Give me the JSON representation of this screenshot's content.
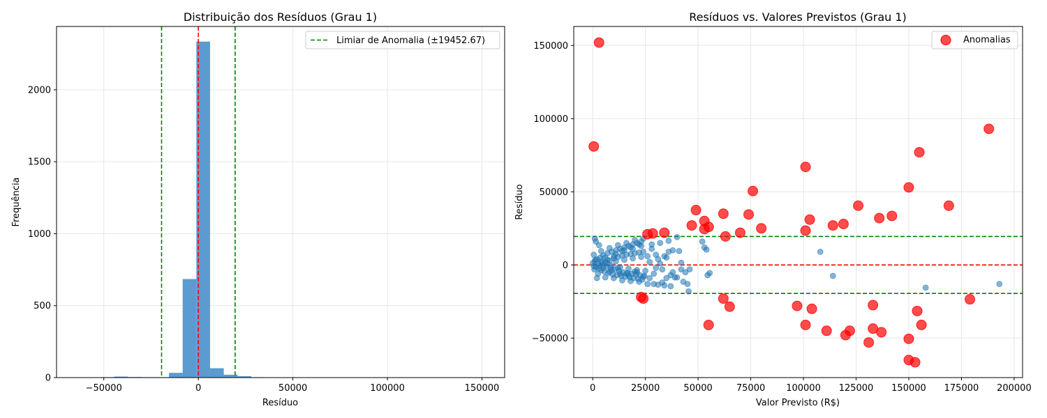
{
  "chart_data": [
    {
      "type": "bar",
      "title": "Distribuição dos Resíduos (Grau 1)",
      "xlabel": "Resíduo",
      "ylabel": "Frequência",
      "xlim": [
        -75000,
        162000
      ],
      "ylim": [
        0,
        2440
      ],
      "xticks": [
        -50000,
        0,
        50000,
        100000,
        150000
      ],
      "xtick_labels": [
        "−50000",
        "0",
        "50000",
        "100000",
        "150000"
      ],
      "yticks": [
        0,
        500,
        1000,
        1500,
        2000
      ],
      "ytick_labels": [
        "0",
        "500",
        "1000",
        "1500",
        "2000"
      ],
      "grid": true,
      "legend_position": "top-right",
      "bar_color": "#5b9bd0",
      "bins": [
        {
          "x0": -66300,
          "x1": -59050,
          "value": 2
        },
        {
          "x0": -51800,
          "x1": -44550,
          "value": 3
        },
        {
          "x0": -44550,
          "x1": -37300,
          "value": 7
        },
        {
          "x0": -37300,
          "x1": -30050,
          "value": 4
        },
        {
          "x0": -30050,
          "x1": -22800,
          "value": 3
        },
        {
          "x0": -22800,
          "x1": -15550,
          "value": 3
        },
        {
          "x0": -15550,
          "x1": -8300,
          "value": 33
        },
        {
          "x0": -8300,
          "x1": -1050,
          "value": 685
        },
        {
          "x0": -1050,
          "x1": 6200,
          "value": 2335
        },
        {
          "x0": 6200,
          "x1": 13450,
          "value": 65
        },
        {
          "x0": 13450,
          "x1": 20700,
          "value": 20
        },
        {
          "x0": 20700,
          "x1": 27950,
          "value": 10
        },
        {
          "x0": 27950,
          "x1": 35200,
          "value": 3
        },
        {
          "x0": 35200,
          "x1": 42450,
          "value": 2
        },
        {
          "x0": 49700,
          "x1": 56950,
          "value": 2
        },
        {
          "x0": 144000,
          "x1": 151250,
          "value": 1
        }
      ],
      "reference_lines": [
        {
          "x": 0,
          "color": "#ff0000",
          "style": "dashed"
        },
        {
          "x": -19452.67,
          "color": "#008000",
          "style": "dashed"
        },
        {
          "x": 19452.67,
          "color": "#008000",
          "style": "dashed"
        }
      ],
      "legend": [
        {
          "label": "Limiar de Anomalia (±19452.67)",
          "color": "#008000",
          "style": "dashed"
        }
      ]
    },
    {
      "type": "scatter",
      "title": "Resíduos vs. Valores Previstos (Grau 1)",
      "xlabel": "Valor Previsto (R$)",
      "ylabel": "Resíduo",
      "xlim": [
        -9000,
        204000
      ],
      "ylim": [
        -77000,
        163000
      ],
      "xticks": [
        0,
        25000,
        50000,
        75000,
        100000,
        125000,
        150000,
        175000,
        200000
      ],
      "xtick_labels": [
        "0",
        "25000",
        "50000",
        "75000",
        "100000",
        "125000",
        "150000",
        "175000",
        "200000"
      ],
      "yticks": [
        -50000,
        0,
        50000,
        100000,
        150000
      ],
      "ytick_labels": [
        "−50000",
        "0",
        "50000",
        "100000",
        "150000"
      ],
      "grid": true,
      "legend_position": "top-right",
      "normal_color": "#1f77b4",
      "anomaly_color": "#ff0000",
      "reference_lines": [
        {
          "y": 0,
          "color": "#ff0000",
          "style": "dashed"
        },
        {
          "y": 19452.67,
          "color": "#008000",
          "style": "dashed"
        },
        {
          "y": -19452.67,
          "color": "#008000",
          "style": "dashed"
        }
      ],
      "legend": [
        {
          "label": "Anomalias",
          "color": "#ff0000",
          "marker": "circle"
        }
      ],
      "normal_points": [
        [
          0,
          1200
        ],
        [
          500,
          -800
        ],
        [
          1000,
          2500
        ],
        [
          1500,
          -1500
        ],
        [
          2000,
          4000
        ],
        [
          2500,
          800
        ],
        [
          3000,
          -2500
        ],
        [
          3500,
          5000
        ],
        [
          4000,
          -3500
        ],
        [
          4500,
          1500
        ],
        [
          5000,
          6500
        ],
        [
          5500,
          -4500
        ],
        [
          6000,
          2000
        ],
        [
          6500,
          -1000
        ],
        [
          7000,
          8000
        ],
        [
          7500,
          -5500
        ],
        [
          8000,
          3000
        ],
        [
          8500,
          -2000
        ],
        [
          9000,
          9000
        ],
        [
          9500,
          -6500
        ],
        [
          10000,
          4500
        ],
        [
          10500,
          -3000
        ],
        [
          11000,
          10000
        ],
        [
          11500,
          -7000
        ],
        [
          12000,
          5500
        ],
        [
          12500,
          -4000
        ],
        [
          13000,
          11000
        ],
        [
          13500,
          -7500
        ],
        [
          14000,
          6500
        ],
        [
          14500,
          -5000
        ],
        [
          15000,
          12000
        ],
        [
          15500,
          -8000
        ],
        [
          16000,
          7000
        ],
        [
          16500,
          -5500
        ],
        [
          17000,
          13000
        ],
        [
          17500,
          -8500
        ],
        [
          18000,
          7500
        ],
        [
          18500,
          -6000
        ],
        [
          19000,
          14000
        ],
        [
          19500,
          -9000
        ],
        [
          20000,
          8000
        ],
        [
          20500,
          -6500
        ],
        [
          21000,
          15000
        ],
        [
          21500,
          -9500
        ],
        [
          22000,
          8500
        ],
        [
          22500,
          -7000
        ],
        [
          23000,
          16000
        ],
        [
          23500,
          -10000
        ],
        [
          24000,
          9000
        ],
        [
          24500,
          -7500
        ],
        [
          1000,
          18000
        ],
        [
          1500,
          16000
        ],
        [
          3000,
          13500
        ],
        [
          500,
          7000
        ],
        [
          2000,
          -9000
        ],
        [
          800,
          -3000
        ],
        [
          1200,
          3500
        ],
        [
          2500,
          -6000
        ],
        [
          4000,
          9500
        ],
        [
          6000,
          -8500
        ],
        [
          8000,
          11500
        ],
        [
          10000,
          -9000
        ],
        [
          12000,
          13500
        ],
        [
          14000,
          -10500
        ],
        [
          16000,
          15000
        ],
        [
          18000,
          -11000
        ],
        [
          20000,
          17000
        ],
        [
          22000,
          -11500
        ],
        [
          24000,
          18000
        ],
        [
          5000,
          0
        ],
        [
          7000,
          1000
        ],
        [
          9000,
          -500
        ],
        [
          11000,
          2500
        ],
        [
          13000,
          -1500
        ],
        [
          15000,
          3500
        ],
        [
          17000,
          -2500
        ],
        [
          19000,
          4500
        ],
        [
          21000,
          -3500
        ],
        [
          23000,
          5500
        ],
        [
          26000,
          6000
        ],
        [
          27000,
          -9000
        ],
        [
          28000,
          14000
        ],
        [
          29000,
          -13000
        ],
        [
          30000,
          7000
        ],
        [
          31000,
          -13500
        ],
        [
          32000,
          15000
        ],
        [
          33000,
          -12000
        ],
        [
          34000,
          6000
        ],
        [
          35000,
          -9000
        ],
        [
          36000,
          16500
        ],
        [
          37000,
          -14500
        ],
        [
          38000,
          10000
        ],
        [
          39000,
          -8500
        ],
        [
          40000,
          19000
        ],
        [
          41000,
          9500
        ],
        [
          42000,
          -3000
        ],
        [
          43000,
          -11500
        ],
        [
          44000,
          -5000
        ],
        [
          45000,
          -13000
        ],
        [
          45500,
          -18000
        ],
        [
          46000,
          -3000
        ],
        [
          52000,
          16000
        ],
        [
          53000,
          12000
        ],
        [
          54000,
          10500
        ],
        [
          54500,
          -7000
        ],
        [
          55500,
          -5500
        ],
        [
          108000,
          9000
        ],
        [
          114000,
          -7500
        ],
        [
          158000,
          -15500
        ],
        [
          193000,
          -13000
        ],
        [
          30000,
          -2000
        ],
        [
          32000,
          1000
        ],
        [
          25000,
          -4000
        ],
        [
          27000,
          2000
        ],
        [
          29000,
          -6000
        ],
        [
          31000,
          4000
        ],
        [
          33000,
          -3000
        ],
        [
          35000,
          5000
        ],
        [
          37000,
          -7000
        ],
        [
          36000,
          9000
        ],
        [
          40000,
          -8500
        ],
        [
          42000,
          1500
        ],
        [
          38000,
          -5000
        ],
        [
          26000,
          -13000
        ],
        [
          28000,
          11000
        ],
        [
          34000,
          -14000
        ],
        [
          10000,
          6000
        ],
        [
          12000,
          -2000
        ],
        [
          14000,
          9500
        ],
        [
          16000,
          -6000
        ],
        [
          18000,
          12000
        ],
        [
          20000,
          -4500
        ],
        [
          22000,
          14000
        ],
        [
          24000,
          -8000
        ],
        [
          6000,
          5000
        ],
        [
          8000,
          -4500
        ],
        [
          3000,
          -500
        ],
        [
          4000,
          2500
        ],
        [
          5000,
          -2000
        ],
        [
          7000,
          3500
        ],
        [
          9000,
          -3500
        ],
        [
          11000,
          7500
        ],
        [
          13000,
          -6000
        ],
        [
          15000,
          10000
        ],
        [
          17000,
          -7000
        ],
        [
          19000,
          11000
        ],
        [
          21000,
          -5000
        ],
        [
          23000,
          13000
        ]
      ],
      "anomaly_points": [
        [
          3000,
          152000
        ],
        [
          500,
          81000
        ],
        [
          188000,
          93000
        ],
        [
          155000,
          77000
        ],
        [
          101000,
          67000
        ],
        [
          150000,
          53000
        ],
        [
          76000,
          50500
        ],
        [
          169000,
          40500
        ],
        [
          126000,
          40500
        ],
        [
          49000,
          37500
        ],
        [
          62000,
          35000
        ],
        [
          74000,
          34500
        ],
        [
          142000,
          33500
        ],
        [
          136000,
          32000
        ],
        [
          103000,
          31000
        ],
        [
          53000,
          30000
        ],
        [
          119000,
          28000
        ],
        [
          114000,
          27000
        ],
        [
          47000,
          27000
        ],
        [
          55000,
          26000
        ],
        [
          80000,
          25000
        ],
        [
          53000,
          24500
        ],
        [
          101000,
          23500
        ],
        [
          34000,
          22000
        ],
        [
          70000,
          22000
        ],
        [
          26000,
          21000
        ],
        [
          28500,
          21500
        ],
        [
          63000,
          19500
        ],
        [
          23000,
          -22000
        ],
        [
          24000,
          -23000
        ],
        [
          62000,
          -23000
        ],
        [
          179000,
          -23500
        ],
        [
          133000,
          -27500
        ],
        [
          65000,
          -28500
        ],
        [
          97000,
          -28000
        ],
        [
          104000,
          -30000
        ],
        [
          154000,
          -31500
        ],
        [
          133000,
          -43500
        ],
        [
          137000,
          -46000
        ],
        [
          55000,
          -41000
        ],
        [
          101000,
          -41000
        ],
        [
          156000,
          -41000
        ],
        [
          111000,
          -45000
        ],
        [
          122000,
          -45000
        ],
        [
          120000,
          -48000
        ],
        [
          150000,
          -50500
        ],
        [
          131000,
          -53000
        ],
        [
          150000,
          -65000
        ],
        [
          153000,
          -66500
        ]
      ]
    }
  ]
}
